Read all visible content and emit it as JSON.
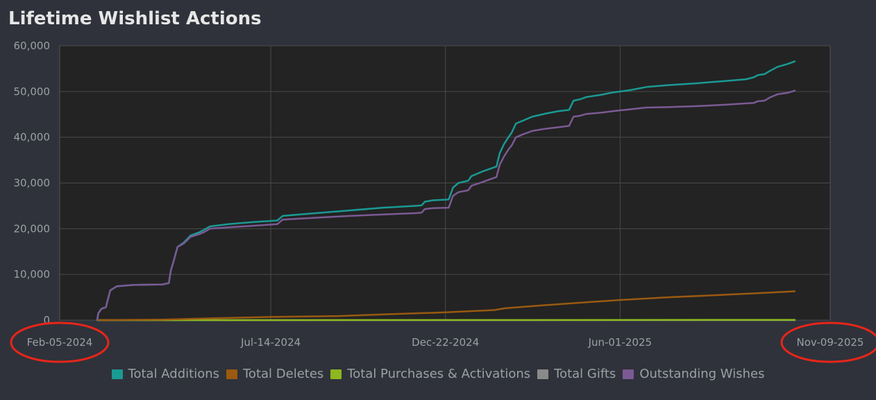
{
  "chart_data": {
    "type": "line",
    "title": "Lifetime Wishlist Actions",
    "xlabel": "",
    "ylabel": "",
    "ylim": [
      0,
      60000
    ],
    "yticks": [
      "0",
      "10,000",
      "20,000",
      "30,000",
      "40,000",
      "50,000",
      "60,000"
    ],
    "xlim": [
      "2024-02-05",
      "2025-11-09"
    ],
    "xticks": [
      {
        "label": "Feb-05-2024",
        "date": "2024-02-05"
      },
      {
        "label": "Jul-14-2024",
        "date": "2024-07-14"
      },
      {
        "label": "Dec-22-2024",
        "date": "2024-12-22"
      },
      {
        "label": "Jun-01-2025",
        "date": "2025-06-01"
      },
      {
        "label": "Nov-09-2025",
        "date": "2025-11-09"
      }
    ],
    "grid": true,
    "legend_position": "bottom",
    "series": [
      {
        "name": "Total Additions",
        "color": "#1a9a94",
        "points": [
          [
            "2024-02-05",
            0
          ],
          [
            "2024-02-06",
            1500
          ],
          [
            "2024-02-09",
            2500
          ],
          [
            "2024-02-13",
            2800
          ],
          [
            "2024-02-17",
            6500
          ],
          [
            "2024-02-23",
            7400
          ],
          [
            "2024-03-10",
            7700
          ],
          [
            "2024-04-05",
            7800
          ],
          [
            "2024-04-11",
            8100
          ],
          [
            "2024-04-13",
            11000
          ],
          [
            "2024-04-15",
            12500
          ],
          [
            "2024-04-19",
            16000
          ],
          [
            "2024-04-25",
            17000
          ],
          [
            "2024-05-01",
            18500
          ],
          [
            "2024-05-09",
            19200
          ],
          [
            "2024-05-13",
            19700
          ],
          [
            "2024-05-19",
            20500
          ],
          [
            "2024-06-05",
            21000
          ],
          [
            "2024-06-25",
            21400
          ],
          [
            "2024-07-20",
            21800
          ],
          [
            "2024-07-25",
            22800
          ],
          [
            "2024-08-25",
            23400
          ],
          [
            "2024-09-25",
            24000
          ],
          [
            "2024-10-25",
            24600
          ],
          [
            "2024-11-25",
            25000
          ],
          [
            "2024-11-30",
            25100
          ],
          [
            "2024-12-03",
            25900
          ],
          [
            "2024-12-10",
            26200
          ],
          [
            "2024-12-25",
            26400
          ],
          [
            "2024-12-29",
            29000
          ],
          [
            "2025-01-03",
            30000
          ],
          [
            "2025-01-12",
            30500
          ],
          [
            "2025-01-15",
            31500
          ],
          [
            "2025-01-25",
            32500
          ],
          [
            "2025-02-07",
            33600
          ],
          [
            "2025-02-10",
            36500
          ],
          [
            "2025-02-14",
            38500
          ],
          [
            "2025-02-18",
            40000
          ],
          [
            "2025-02-21",
            41000
          ],
          [
            "2025-02-25",
            43000
          ],
          [
            "2025-03-03",
            43600
          ],
          [
            "2025-03-12",
            44500
          ],
          [
            "2025-03-25",
            45200
          ],
          [
            "2025-04-05",
            45700
          ],
          [
            "2025-04-15",
            46000
          ],
          [
            "2025-04-19",
            48000
          ],
          [
            "2025-04-25",
            48300
          ],
          [
            "2025-05-01",
            48800
          ],
          [
            "2025-05-15",
            49300
          ],
          [
            "2025-05-25",
            49800
          ],
          [
            "2025-06-10",
            50300
          ],
          [
            "2025-06-25",
            51000
          ],
          [
            "2025-07-15",
            51400
          ],
          [
            "2025-08-10",
            51800
          ],
          [
            "2025-09-05",
            52300
          ],
          [
            "2025-09-25",
            52700
          ],
          [
            "2025-10-02",
            53100
          ],
          [
            "2025-10-06",
            53600
          ],
          [
            "2025-10-12",
            53800
          ],
          [
            "2025-10-17",
            54500
          ],
          [
            "2025-10-24",
            55400
          ],
          [
            "2025-11-02",
            56000
          ],
          [
            "2025-11-09",
            56600
          ]
        ]
      },
      {
        "name": "Total Deletes",
        "color": "#9a5a10",
        "points": [
          [
            "2024-02-05",
            0
          ],
          [
            "2024-04-05",
            100
          ],
          [
            "2024-05-20",
            400
          ],
          [
            "2024-07-14",
            700
          ],
          [
            "2024-09-15",
            900
          ],
          [
            "2024-11-01",
            1300
          ],
          [
            "2024-12-22",
            1700
          ],
          [
            "2025-02-05",
            2200
          ],
          [
            "2025-02-15",
            2600
          ],
          [
            "2025-03-20",
            3200
          ],
          [
            "2025-05-01",
            3900
          ],
          [
            "2025-06-01",
            4400
          ],
          [
            "2025-07-15",
            5000
          ],
          [
            "2025-09-01",
            5500
          ],
          [
            "2025-10-15",
            6000
          ],
          [
            "2025-11-09",
            6300
          ]
        ]
      },
      {
        "name": "Total Purchases & Activations",
        "color": "#8db81e",
        "points": [
          [
            "2024-02-05",
            0
          ],
          [
            "2024-12-22",
            20
          ],
          [
            "2025-11-09",
            60
          ]
        ]
      },
      {
        "name": "Total Gifts",
        "color": "#8a8a8a",
        "points": [
          [
            "2024-02-05",
            0
          ],
          [
            "2025-11-09",
            5
          ]
        ]
      },
      {
        "name": "Outstanding Wishes",
        "color": "#7b5a94",
        "points": [
          [
            "2024-02-05",
            0
          ],
          [
            "2024-02-06",
            1500
          ],
          [
            "2024-02-09",
            2500
          ],
          [
            "2024-02-13",
            2800
          ],
          [
            "2024-02-17",
            6500
          ],
          [
            "2024-02-23",
            7400
          ],
          [
            "2024-03-10",
            7700
          ],
          [
            "2024-04-05",
            7800
          ],
          [
            "2024-04-11",
            8100
          ],
          [
            "2024-04-13",
            11000
          ],
          [
            "2024-04-15",
            12500
          ],
          [
            "2024-04-19",
            16000
          ],
          [
            "2024-04-25",
            16800
          ],
          [
            "2024-05-01",
            18200
          ],
          [
            "2024-05-09",
            18800
          ],
          [
            "2024-05-13",
            19200
          ],
          [
            "2024-05-19",
            20000
          ],
          [
            "2024-06-05",
            20300
          ],
          [
            "2024-06-25",
            20600
          ],
          [
            "2024-07-20",
            21000
          ],
          [
            "2024-07-25",
            22000
          ],
          [
            "2024-08-25",
            22400
          ],
          [
            "2024-09-25",
            22800
          ],
          [
            "2024-10-25",
            23100
          ],
          [
            "2024-11-25",
            23400
          ],
          [
            "2024-11-30",
            23500
          ],
          [
            "2024-12-03",
            24300
          ],
          [
            "2024-12-10",
            24500
          ],
          [
            "2024-12-25",
            24600
          ],
          [
            "2024-12-29",
            27200
          ],
          [
            "2025-01-03",
            28000
          ],
          [
            "2025-01-12",
            28400
          ],
          [
            "2025-01-15",
            29400
          ],
          [
            "2025-01-25",
            30200
          ],
          [
            "2025-02-07",
            31300
          ],
          [
            "2025-02-10",
            34000
          ],
          [
            "2025-02-14",
            35800
          ],
          [
            "2025-02-18",
            37300
          ],
          [
            "2025-02-21",
            38200
          ],
          [
            "2025-02-25",
            40000
          ],
          [
            "2025-03-03",
            40600
          ],
          [
            "2025-03-12",
            41400
          ],
          [
            "2025-03-25",
            41900
          ],
          [
            "2025-04-05",
            42200
          ],
          [
            "2025-04-15",
            42500
          ],
          [
            "2025-04-19",
            44500
          ],
          [
            "2025-04-25",
            44700
          ],
          [
            "2025-05-01",
            45100
          ],
          [
            "2025-05-15",
            45400
          ],
          [
            "2025-05-25",
            45700
          ],
          [
            "2025-06-10",
            46100
          ],
          [
            "2025-06-25",
            46500
          ],
          [
            "2025-07-15",
            46600
          ],
          [
            "2025-08-10",
            46800
          ],
          [
            "2025-09-05",
            47100
          ],
          [
            "2025-09-25",
            47400
          ],
          [
            "2025-10-02",
            47500
          ],
          [
            "2025-10-06",
            47900
          ],
          [
            "2025-10-12",
            48000
          ],
          [
            "2025-10-17",
            48700
          ],
          [
            "2025-10-24",
            49400
          ],
          [
            "2025-11-02",
            49700
          ],
          [
            "2025-11-09",
            50200
          ]
        ]
      }
    ],
    "annotations": [
      {
        "type": "ellipse",
        "target": "Feb-05-2024",
        "color": "#e8251a"
      },
      {
        "type": "ellipse",
        "target": "Nov-09-2025",
        "color": "#e8251a"
      }
    ]
  },
  "colors": {
    "page_background": "#2f323a",
    "plot_background": "#232323",
    "grid": "#4a4a4a",
    "tick_text": "#9aa0a6",
    "title_text": "#e6e6e6"
  }
}
